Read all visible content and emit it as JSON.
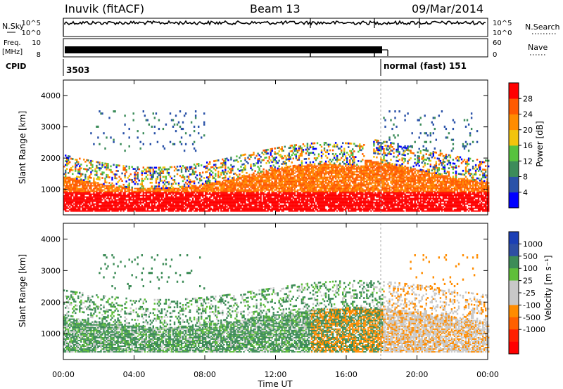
{
  "header": {
    "station": "Inuvik (fitACF)",
    "beam": "Beam 13",
    "date": "09/Mar/2014"
  },
  "panels": {
    "nsky": {
      "label": "N.Sky",
      "right_label": "N.Search",
      "ticks_left": [
        "10^5",
        "10^0"
      ],
      "ticks_right": [
        "10^5",
        "10^0"
      ]
    },
    "freq": {
      "label_line1": "Freq.",
      "label_line2": "[MHz]",
      "right_label": "Nave",
      "ticks_left": [
        "10",
        "8"
      ],
      "ticks_right": [
        "60",
        "0"
      ]
    },
    "cpid": {
      "label": "CPID",
      "value_1": "3503",
      "value_2": "normal (fast) 151"
    }
  },
  "colors": {
    "power": [
      "#0000ff",
      "#2a52a8",
      "#3c8c5a",
      "#57c23e",
      "#f2c40c",
      "#ff8c00",
      "#ff5a00",
      "#ff0000"
    ],
    "velocity": [
      "#1b3fb5",
      "#2e4fa3",
      "#3d8c57",
      "#5fbf3a",
      "#c8c8c8",
      "#c8c8c8",
      "#ff8c00",
      "#ff6000",
      "#ff2000",
      "#ff0000"
    ]
  },
  "chart_data": [
    {
      "type": "heatmap",
      "name": "Power",
      "ylabel": "Slant Range [km]",
      "yticks": [
        "1000",
        "2000",
        "3000",
        "4000"
      ],
      "colorbar_label": "Power [dB]",
      "colorbar_ticks": [
        "4",
        "8",
        "12",
        "16",
        "20",
        "24",
        "28"
      ],
      "xlim": [
        "00:00",
        "24:00"
      ],
      "ylim": [
        180,
        4500
      ]
    },
    {
      "type": "heatmap",
      "name": "Velocity",
      "ylabel": "Slant Range [km]",
      "yticks": [
        "1000",
        "2000",
        "3000",
        "4000"
      ],
      "colorbar_label": "Velocity [m s⁻¹]",
      "colorbar_ticks": [
        "1000",
        "500",
        "100",
        "25",
        "-25",
        "-100",
        "-500",
        "-1000"
      ],
      "xlabel": "Time UT",
      "xticks": [
        "00:00",
        "04:00",
        "08:00",
        "12:00",
        "16:00",
        "20:00",
        "00:00"
      ],
      "xlim": [
        "00:00",
        "24:00"
      ],
      "ylim": [
        180,
        4500
      ]
    }
  ]
}
